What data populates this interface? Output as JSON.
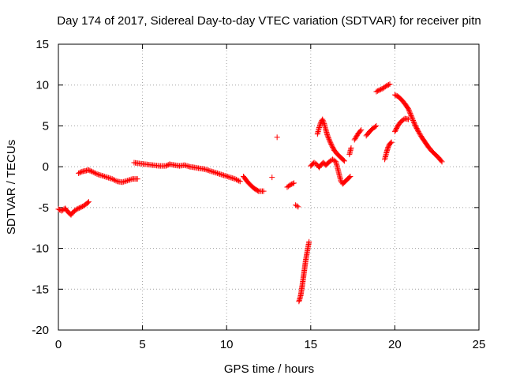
{
  "chart_data": {
    "type": "scatter",
    "title": "Day 174 of 2017, Sidereal Day-to-day VTEC variation (SDTVAR) for receiver pitn",
    "xlabel": "GPS time / hours",
    "ylabel": "SDTVAR / TECUs",
    "xlim": [
      0,
      25
    ],
    "ylim": [
      -20,
      15
    ],
    "xticks": [
      0,
      5,
      10,
      15,
      20,
      25
    ],
    "yticks": [
      -20,
      -15,
      -10,
      -5,
      0,
      5,
      10,
      15
    ],
    "grid": true,
    "marker": "+",
    "color": "#ff0000",
    "segments": [
      [
        [
          0.0,
          -5.2
        ],
        [
          0.2,
          -5.4
        ],
        [
          0.4,
          -5.1
        ],
        [
          0.6,
          -5.6
        ],
        [
          0.75,
          -5.9
        ],
        [
          0.9,
          -5.5
        ],
        [
          1.1,
          -5.2
        ],
        [
          1.3,
          -5.0
        ],
        [
          1.5,
          -4.8
        ],
        [
          1.7,
          -4.5
        ],
        [
          1.8,
          -4.3
        ]
      ],
      [
        [
          1.2,
          -0.8
        ],
        [
          1.4,
          -0.6
        ],
        [
          1.6,
          -0.5
        ],
        [
          1.8,
          -0.4
        ],
        [
          2.0,
          -0.6
        ],
        [
          2.3,
          -0.9
        ],
        [
          2.6,
          -1.1
        ],
        [
          2.9,
          -1.3
        ],
        [
          3.2,
          -1.5
        ],
        [
          3.5,
          -1.8
        ],
        [
          3.8,
          -1.9
        ],
        [
          4.1,
          -1.7
        ],
        [
          4.4,
          -1.5
        ],
        [
          4.7,
          -1.5
        ]
      ],
      [
        [
          4.5,
          0.5
        ],
        [
          4.8,
          0.4
        ],
        [
          5.2,
          0.3
        ],
        [
          5.6,
          0.2
        ],
        [
          6.0,
          0.1
        ],
        [
          6.4,
          0.1
        ],
        [
          6.6,
          0.3
        ],
        [
          6.9,
          0.2
        ],
        [
          7.2,
          0.1
        ],
        [
          7.5,
          0.2
        ],
        [
          7.8,
          0.0
        ],
        [
          8.1,
          -0.1
        ],
        [
          8.4,
          -0.2
        ],
        [
          8.7,
          -0.3
        ],
        [
          9.0,
          -0.5
        ],
        [
          9.3,
          -0.7
        ],
        [
          9.6,
          -0.9
        ],
        [
          9.9,
          -1.1
        ],
        [
          10.2,
          -1.3
        ],
        [
          10.5,
          -1.5
        ],
        [
          10.8,
          -1.8
        ]
      ],
      [
        [
          11.0,
          -1.2
        ],
        [
          11.3,
          -2.0
        ],
        [
          11.6,
          -2.6
        ],
        [
          11.9,
          -3.0
        ],
        [
          12.2,
          -3.0
        ]
      ],
      [
        [
          12.7,
          -1.3
        ]
      ],
      [
        [
          13.0,
          3.6
        ]
      ],
      [
        [
          13.6,
          -2.5
        ],
        [
          13.8,
          -2.2
        ],
        [
          14.0,
          -2.0
        ]
      ],
      [
        [
          14.1,
          -4.7
        ],
        [
          14.25,
          -4.9
        ]
      ],
      [
        [
          14.3,
          -16.5
        ],
        [
          14.4,
          -15.8
        ],
        [
          14.5,
          -14.5
        ],
        [
          14.6,
          -13.0
        ],
        [
          14.7,
          -11.5
        ],
        [
          14.8,
          -10.3
        ],
        [
          14.9,
          -9.2
        ]
      ],
      [
        [
          15.0,
          0.1
        ],
        [
          15.2,
          0.5
        ],
        [
          15.35,
          0.3
        ],
        [
          15.5,
          -0.1
        ],
        [
          15.6,
          0.2
        ],
        [
          15.75,
          0.5
        ],
        [
          15.9,
          0.2
        ],
        [
          16.1,
          0.6
        ],
        [
          16.3,
          0.9
        ],
        [
          16.5,
          0.6
        ],
        [
          16.6,
          -0.2
        ],
        [
          16.7,
          -1.0
        ],
        [
          16.8,
          -1.8
        ],
        [
          16.9,
          -2.1
        ],
        [
          17.0,
          -1.9
        ],
        [
          17.2,
          -1.5
        ],
        [
          17.35,
          -1.2
        ]
      ],
      [
        [
          15.4,
          4.0
        ],
        [
          15.5,
          4.8
        ],
        [
          15.6,
          5.4
        ],
        [
          15.7,
          5.8
        ],
        [
          15.8,
          5.3
        ],
        [
          15.9,
          4.5
        ],
        [
          16.0,
          3.8
        ],
        [
          16.2,
          2.8
        ],
        [
          16.4,
          2.0
        ],
        [
          16.6,
          1.5
        ],
        [
          16.8,
          1.1
        ],
        [
          17.0,
          0.7
        ]
      ],
      [
        [
          17.3,
          1.5
        ],
        [
          17.4,
          2.3
        ]
      ],
      [
        [
          17.6,
          3.3
        ],
        [
          17.8,
          4.0
        ],
        [
          18.0,
          4.5
        ]
      ],
      [
        [
          18.3,
          3.8
        ],
        [
          18.5,
          4.3
        ],
        [
          18.7,
          4.7
        ],
        [
          18.9,
          5.0
        ]
      ],
      [
        [
          18.9,
          9.2
        ],
        [
          19.1,
          9.4
        ],
        [
          19.3,
          9.6
        ],
        [
          19.5,
          9.9
        ],
        [
          19.7,
          10.1
        ]
      ],
      [
        [
          19.4,
          0.9
        ],
        [
          19.5,
          1.7
        ],
        [
          19.6,
          2.4
        ],
        [
          19.7,
          2.8
        ],
        [
          19.8,
          3.0
        ]
      ],
      [
        [
          20.0,
          4.3
        ],
        [
          20.2,
          5.1
        ],
        [
          20.4,
          5.6
        ],
        [
          20.6,
          5.9
        ],
        [
          20.8,
          5.8
        ]
      ],
      [
        [
          20.0,
          8.8
        ],
        [
          20.2,
          8.6
        ],
        [
          20.4,
          8.2
        ],
        [
          20.6,
          7.7
        ],
        [
          20.8,
          7.1
        ],
        [
          21.0,
          6.1
        ],
        [
          21.2,
          5.1
        ],
        [
          21.4,
          4.3
        ],
        [
          21.6,
          3.6
        ],
        [
          21.8,
          3.0
        ],
        [
          22.0,
          2.4
        ],
        [
          22.2,
          1.9
        ],
        [
          22.4,
          1.5
        ],
        [
          22.6,
          1.1
        ],
        [
          22.8,
          0.6
        ]
      ]
    ]
  }
}
